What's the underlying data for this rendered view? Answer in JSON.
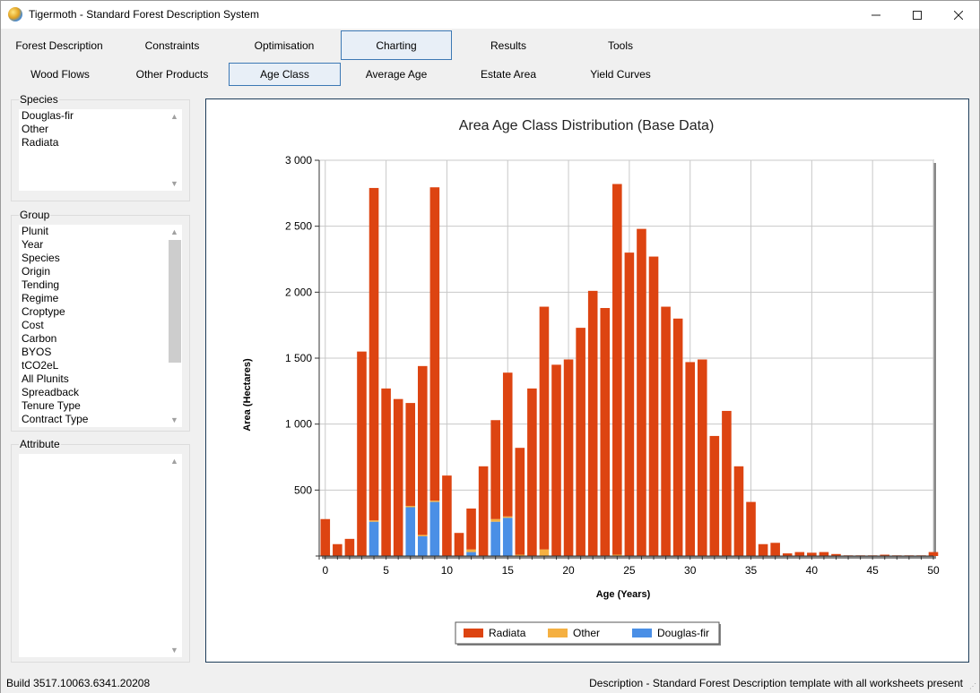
{
  "window": {
    "title": "Tigermoth - Standard Forest Description System"
  },
  "main_tabs": [
    {
      "label": "Forest Description"
    },
    {
      "label": "Constraints"
    },
    {
      "label": "Optimisation"
    },
    {
      "label": "Charting"
    },
    {
      "label": "Results"
    },
    {
      "label": "Tools"
    }
  ],
  "sub_tabs": [
    {
      "label": "Wood Flows"
    },
    {
      "label": "Other Products"
    },
    {
      "label": "Age Class"
    },
    {
      "label": "Average Age"
    },
    {
      "label": "Estate Area"
    },
    {
      "label": "Yield Curves"
    }
  ],
  "species": {
    "label": "Species",
    "items": [
      "Douglas-fir",
      "Other",
      "Radiata"
    ]
  },
  "group": {
    "label": "Group",
    "items": [
      "Plunit",
      "Year",
      "Species",
      "Origin",
      "Tending",
      "Regime",
      "Croptype",
      "Cost",
      "Carbon",
      "BYOS",
      "tCO2eL",
      "All Plunits",
      "Spreadback",
      "Tenure Type",
      "Contract Type"
    ]
  },
  "attribute": {
    "label": "Attribute"
  },
  "chart_data": {
    "type": "bar",
    "stacked": true,
    "title": "Area Age Class Distribution (Base Data)",
    "xlabel": "Age (Years)",
    "ylabel": "Area (Hectares)",
    "x": [
      0,
      1,
      2,
      3,
      4,
      5,
      6,
      7,
      8,
      9,
      10,
      11,
      12,
      13,
      14,
      15,
      16,
      17,
      18,
      19,
      20,
      21,
      22,
      23,
      24,
      25,
      26,
      27,
      28,
      29,
      30,
      31,
      32,
      33,
      34,
      35,
      36,
      37,
      38,
      39,
      40,
      41,
      42,
      43,
      44,
      45,
      46,
      47,
      48,
      49,
      50
    ],
    "xlim": [
      -0.5,
      50
    ],
    "ylim": [
      0,
      3000
    ],
    "yticks": [
      500,
      1000,
      1500,
      2000,
      2500,
      3000
    ],
    "ytick_labels": [
      "500",
      "1 000",
      "1 500",
      "2 000",
      "2 500",
      "3 000"
    ],
    "xticks": [
      0,
      5,
      10,
      15,
      20,
      25,
      30,
      35,
      40,
      45,
      50
    ],
    "grid": true,
    "legend_position": "bottom",
    "series": [
      {
        "name": "Douglas-fir",
        "color": "#4a8fe6",
        "values": [
          0,
          0,
          0,
          0,
          260,
          0,
          0,
          370,
          150,
          410,
          0,
          0,
          30,
          0,
          260,
          290,
          0,
          0,
          0,
          0,
          0,
          0,
          0,
          0,
          0,
          0,
          0,
          0,
          0,
          0,
          0,
          0,
          0,
          0,
          0,
          0,
          0,
          0,
          0,
          0,
          0,
          0,
          0,
          0,
          0,
          0,
          0,
          0,
          0,
          0,
          0
        ]
      },
      {
        "name": "Other",
        "color": "#f5b041",
        "values": [
          0,
          0,
          0,
          0,
          10,
          0,
          0,
          10,
          10,
          10,
          0,
          0,
          20,
          0,
          20,
          10,
          10,
          0,
          50,
          0,
          0,
          0,
          0,
          0,
          10,
          0,
          0,
          0,
          0,
          0,
          0,
          0,
          0,
          0,
          0,
          0,
          0,
          0,
          0,
          0,
          0,
          0,
          0,
          0,
          0,
          0,
          0,
          0,
          0,
          0,
          0
        ]
      },
      {
        "name": "Radiata",
        "color": "#dd4411",
        "values": [
          280,
          90,
          130,
          1550,
          2520,
          1270,
          1190,
          780,
          1280,
          2375,
          610,
          175,
          310,
          680,
          750,
          1090,
          810,
          1270,
          1840,
          1450,
          1490,
          1730,
          2010,
          1880,
          2810,
          2300,
          2480,
          2270,
          1890,
          1800,
          1470,
          1490,
          910,
          1100,
          680,
          410,
          90,
          100,
          20,
          30,
          25,
          30,
          15,
          5,
          5,
          5,
          10,
          5,
          5,
          5,
          30
        ]
      }
    ],
    "legend_order": [
      "Radiata",
      "Other",
      "Douglas-fir"
    ]
  },
  "status": {
    "build": "Build 3517.10063.6341.20208",
    "description": "Description - Standard Forest Description template with all worksheets present"
  }
}
